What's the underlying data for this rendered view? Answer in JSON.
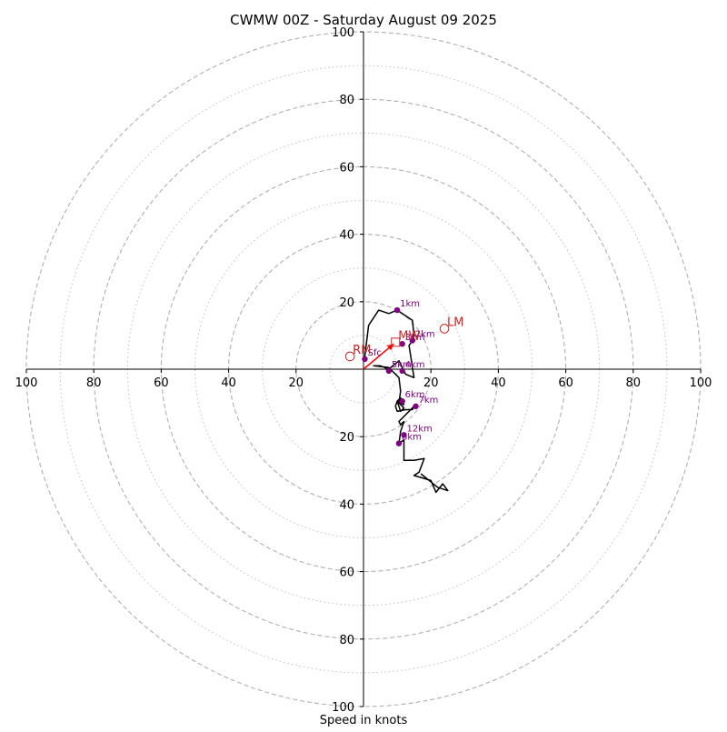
{
  "chart_data": {
    "type": "hodograph",
    "title": "CWMW 00Z - Saturday August 09 2025",
    "xlabel": "Speed in knots",
    "units": "knots",
    "rmax": 100,
    "rings_major": [
      20,
      40,
      60,
      80,
      100
    ],
    "rings_minor": [
      10,
      30,
      50,
      70,
      90
    ],
    "x_tick_labels": [
      "100",
      "80",
      "60",
      "40",
      "20",
      "",
      "20",
      "40",
      "60",
      "80",
      "100"
    ],
    "x_tick_values": [
      -100,
      -80,
      -60,
      -40,
      -20,
      0,
      20,
      40,
      60,
      80,
      100
    ],
    "y_tick_labels": [
      "20",
      "40",
      "60",
      "80",
      "100"
    ],
    "y_tick_values_up": [
      20,
      40,
      60,
      80,
      100
    ],
    "y_tick_values_down": [
      -20,
      -40,
      -60,
      -80,
      -100
    ],
    "grid": true,
    "hodograph_trace": [
      [
        0.3,
        3.0
      ],
      [
        1.5,
        13.0
      ],
      [
        4.5,
        17.5
      ],
      [
        7.5,
        16.5
      ],
      [
        10.0,
        17.5
      ],
      [
        14.5,
        14.5
      ],
      [
        15.0,
        10.0
      ],
      [
        14.5,
        8.5
      ],
      [
        14.5,
        8.5
      ],
      [
        13.5,
        7.0
      ],
      [
        14.0,
        4.0
      ],
      [
        14.5,
        0.5
      ],
      [
        15.0,
        -2.5
      ],
      [
        12.5,
        -1.5
      ],
      [
        11.5,
        0.5
      ],
      [
        10.5,
        2.5
      ],
      [
        7.5,
        0.0
      ],
      [
        5.0,
        1.0
      ],
      [
        3.0,
        1.0
      ],
      [
        7.5,
        0.5
      ],
      [
        10.5,
        -2.5
      ],
      [
        11.0,
        -6.5
      ],
      [
        10.5,
        -10.0
      ],
      [
        12.0,
        -10.5
      ],
      [
        11.0,
        -8.5
      ],
      [
        10.0,
        -9.5
      ],
      [
        11.5,
        -11.0
      ],
      [
        12.0,
        -11.5
      ],
      [
        11.0,
        -12.5
      ],
      [
        10.0,
        -9.5
      ],
      [
        9.5,
        -11.0
      ],
      [
        10.0,
        -12.5
      ],
      [
        12.5,
        -12.0
      ],
      [
        14.5,
        -12.0
      ],
      [
        15.0,
        -11.0
      ],
      [
        10.5,
        -15.5
      ],
      [
        11.0,
        -16.5
      ],
      [
        12.0,
        -15.5
      ],
      [
        11.0,
        -18.5
      ],
      [
        10.5,
        -22.0
      ],
      [
        12.0,
        -21.0
      ],
      [
        12.0,
        -25.0
      ],
      [
        12.0,
        -27.0
      ],
      [
        15.0,
        -27.0
      ],
      [
        18.0,
        -26.5
      ],
      [
        16.5,
        -30.5
      ],
      [
        15.0,
        -31.5
      ],
      [
        20.0,
        -33.0
      ],
      [
        21.5,
        -36.5
      ],
      [
        23.5,
        -34.0
      ],
      [
        25.0,
        -36.0
      ],
      [
        22.0,
        -35.0
      ],
      [
        17.0,
        -31.0
      ]
    ],
    "height_markers": [
      {
        "label": "Sfc",
        "u": 0.4,
        "v": 3.0
      },
      {
        "label": "1km",
        "u": 10.0,
        "v": 17.5
      },
      {
        "label": "2km",
        "u": 14.5,
        "v": 8.5
      },
      {
        "label": "3km",
        "u": 11.5,
        "v": 7.5
      },
      {
        "label": "4km",
        "u": 11.5,
        "v": -0.5
      },
      {
        "label": "5km",
        "u": 7.5,
        "v": -0.5
      },
      {
        "label": "6km",
        "u": 11.5,
        "v": -9.5
      },
      {
        "label": "7km",
        "u": 15.5,
        "v": -11.0
      },
      {
        "label": "12km",
        "u": 12.0,
        "v": -19.5
      },
      {
        "label": "8km",
        "u": 10.5,
        "v": -22.0
      }
    ],
    "storm_motions": [
      {
        "label": "RM",
        "u": -4.0,
        "v": 3.8,
        "shape": "circle"
      },
      {
        "label": "LM",
        "u": 24.0,
        "v": 12.0,
        "shape": "circle"
      },
      {
        "label": "MW",
        "u": 9.5,
        "v": 8.0,
        "shape": "square"
      }
    ],
    "shear_vector": {
      "from": [
        0,
        0
      ],
      "to": [
        9.0,
        7.5
      ]
    },
    "colors": {
      "trace": "#000000",
      "marker": "#800080",
      "storm_motion": "#cc2222",
      "shear_vector": "#ff0000",
      "ring": "#b0b0b0",
      "axis": "#000000"
    }
  }
}
